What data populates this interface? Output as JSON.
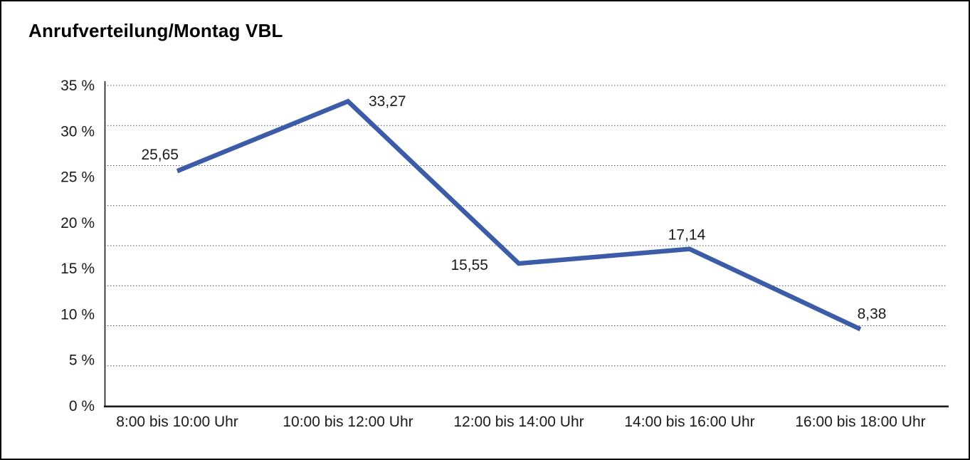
{
  "title": "Anrufverteilung/Montag VBL",
  "chart_data": {
    "type": "line",
    "title": "Anrufverteilung/Montag VBL",
    "categories": [
      "8:00 bis 10:00 Uhr",
      "10:00 bis 12:00 Uhr",
      "12:00 bis 14:00 Uhr",
      "14:00 bis 16:00 Uhr",
      "16:00 bis 18:00 Uhr"
    ],
    "values": [
      25.65,
      33.27,
      15.55,
      17.14,
      8.38
    ],
    "value_labels": [
      "25,65",
      "33,27",
      "15,55",
      "17,14",
      "8,38"
    ],
    "y_tick_labels": [
      "0 %",
      "5 %",
      "10 %",
      "15 %",
      "20 %",
      "25 %",
      "30 %",
      "35 %"
    ],
    "y_tick_values": [
      0,
      5,
      10,
      15,
      20,
      25,
      30,
      35
    ],
    "xlabel": "",
    "ylabel": "",
    "ylim": [
      0,
      35
    ],
    "grid": "horizontal-dotted",
    "grid_intervals": 8,
    "legend": "none",
    "line_color": "#3C5CA8",
    "axis_color": "#1a1a1a",
    "grid_color": "#4a4a4a",
    "text_color": "#1a1a1a"
  }
}
